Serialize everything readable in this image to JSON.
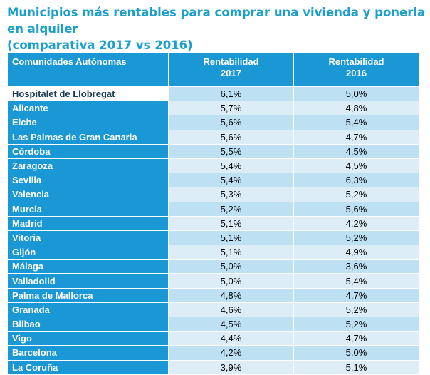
{
  "header": {
    "title": [
      "Municipios más rentables para comprar una vivienda y ponerla en alquiler",
      "(comparativa 2017 vs 2016)"
    ]
  },
  "table": {
    "columns": [
      "Comunidades Autónomas",
      [
        "Rentabilidad",
        "2017"
      ],
      [
        "Rentabilidad",
        "2016"
      ]
    ],
    "rows": [
      [
        "Hospitalet de Llobregat",
        "6,1%",
        "5,0%"
      ],
      [
        "Alicante",
        "5,7%",
        "4,8%"
      ],
      [
        "Elche",
        "5,6%",
        "5,4%"
      ],
      [
        "Las Palmas de Gran Canaria",
        "5,6%",
        "4,7%"
      ],
      [
        "Córdoba",
        "5,5%",
        "4,5%"
      ],
      [
        "Zaragoza",
        "5,4%",
        "4,5%"
      ],
      [
        "Sevilla",
        "5,4%",
        "6,3%"
      ],
      [
        "Valencia",
        "5,3%",
        "5,2%"
      ],
      [
        "Murcia",
        "5,2%",
        "5,6%"
      ],
      [
        "Madrid",
        "5,1%",
        "4,2%"
      ],
      [
        "Vitoria",
        "5,1%",
        "5,2%"
      ],
      [
        "Gijón",
        "5,1%",
        "4,9%"
      ],
      [
        "Málaga",
        "5,0%",
        "3,6%"
      ],
      [
        "Valladolid",
        "5,0%",
        "5,4%"
      ],
      [
        "Palma de Mallorca",
        "4,8%",
        "4,7%"
      ],
      [
        "Granada",
        "4,6%",
        "5,2%"
      ],
      [
        "Bilbao",
        "4,5%",
        "5,2%"
      ],
      [
        "Vigo",
        "4,4%",
        "4,7%"
      ],
      [
        "Barcelona",
        "4,2%",
        "5,0%"
      ],
      [
        "La Coruña",
        "3,9%",
        "5,1%"
      ]
    ]
  }
}
